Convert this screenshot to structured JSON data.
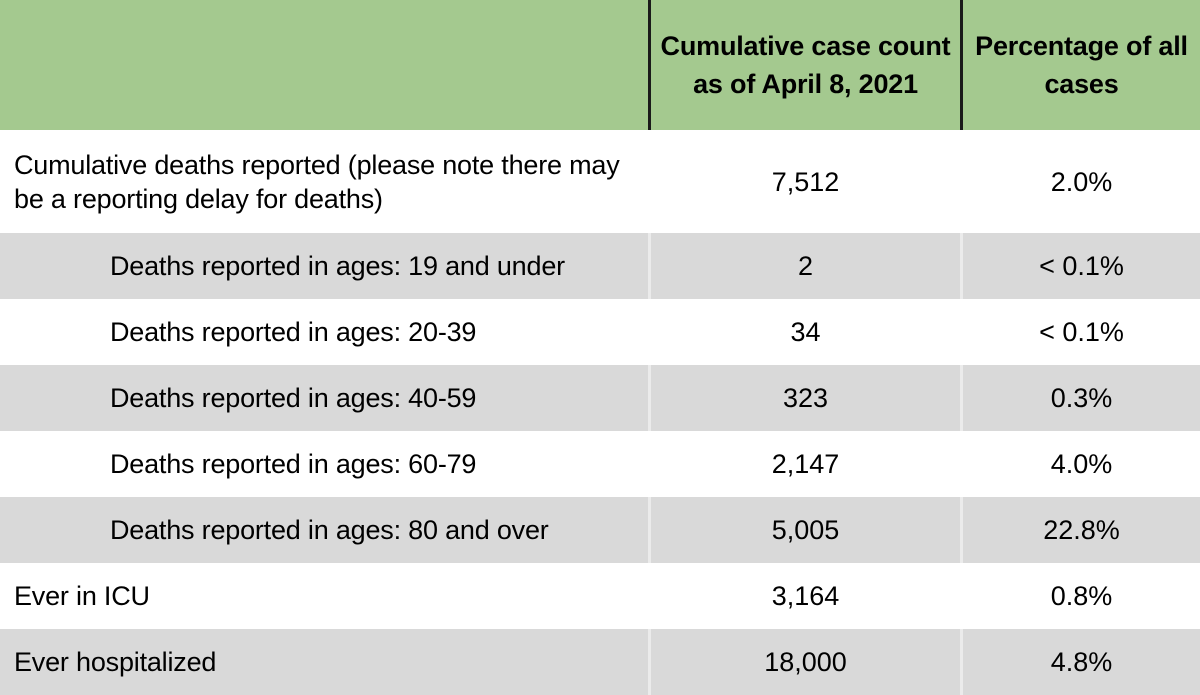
{
  "colors": {
    "header_green": "#a4c98f",
    "row_gray": "#d9d9d9",
    "divider_dark": "#1a1a1a",
    "divider_light": "#ebebeb",
    "text": "#000000"
  },
  "table": {
    "header": {
      "case_count_label": "Cumulative case count as of April 8, 2021",
      "percentage_label": "Percentage of all cases"
    },
    "rows": [
      {
        "label": "Cumulative deaths reported (please note there may be a reporting delay for deaths)",
        "count": "7,512",
        "percentage": "2.0%"
      },
      {
        "label": "Deaths reported in ages: 19 and under",
        "count": "2",
        "percentage": "< 0.1%"
      },
      {
        "label": "Deaths reported in ages: 20-39",
        "count": "34",
        "percentage": "< 0.1%"
      },
      {
        "label": "Deaths reported in ages: 40-59",
        "count": "323",
        "percentage": "0.3%"
      },
      {
        "label": "Deaths reported in ages: 60-79",
        "count": "2,147",
        "percentage": "4.0%"
      },
      {
        "label": "Deaths reported in ages: 80 and over",
        "count": "5,005",
        "percentage": "22.8%"
      },
      {
        "label": "Ever in ICU",
        "count": "3,164",
        "percentage": "0.8%"
      },
      {
        "label": "Ever hospitalized",
        "count": "18,000",
        "percentage": "4.8%"
      }
    ]
  },
  "chart_data": {
    "type": "table",
    "columns": [
      "",
      "Cumulative case count as of April 8, 2021",
      "Percentage of all cases"
    ],
    "rows": [
      [
        "Cumulative deaths reported (please note there may be a reporting delay for deaths)",
        "7,512",
        "2.0%"
      ],
      [
        "Deaths reported in ages: 19 and under",
        "2",
        "< 0.1%"
      ],
      [
        "Deaths reported in ages: 20-39",
        "34",
        "< 0.1%"
      ],
      [
        "Deaths reported in ages: 40-59",
        "323",
        "0.3%"
      ],
      [
        "Deaths reported in ages: 60-79",
        "2,147",
        "4.0%"
      ],
      [
        "Deaths reported in ages: 80 and over",
        "5,005",
        "22.8%"
      ],
      [
        "Ever in ICU",
        "3,164",
        "0.8%"
      ],
      [
        "Ever hospitalized",
        "18,000",
        "4.8%"
      ]
    ]
  }
}
